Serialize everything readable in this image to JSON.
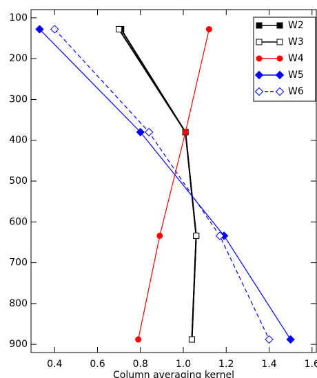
{
  "chart_data": {
    "type": "line",
    "xlabel": "Column averaging kernel",
    "y": [
      128,
      380,
      634,
      888
    ],
    "xlim": [
      0.29,
      1.62
    ],
    "ylim": [
      920,
      80
    ],
    "xticks": [
      0.4,
      0.6,
      0.8,
      {
        "value": 1.0,
        "label": "1.0"
      },
      1.2,
      1.4,
      1.6
    ],
    "yticks": [
      100,
      200,
      300,
      400,
      500,
      600,
      700,
      800,
      900
    ],
    "legend": "upper right",
    "series": [
      {
        "name": "W2",
        "color": "#000000",
        "marker": "square",
        "filled": true,
        "dashed": false,
        "values": [
          0.71,
          1.01,
          1.06,
          1.04
        ]
      },
      {
        "name": "W3",
        "color": "#000000",
        "marker": "square",
        "filled": false,
        "dashed": false,
        "values": [
          0.7,
          1.01,
          1.06,
          1.04
        ]
      },
      {
        "name": "W4",
        "color": "#ff0000",
        "marker": "circle",
        "filled": true,
        "dashed": false,
        "values": [
          1.12,
          1.01,
          0.89,
          0.79
        ]
      },
      {
        "name": "W5",
        "color": "#0000ff",
        "marker": "diamond",
        "filled": true,
        "dashed": false,
        "values": [
          0.33,
          0.8,
          1.19,
          1.5
        ]
      },
      {
        "name": "W6",
        "color": "#0000ff",
        "marker": "diamond",
        "filled": false,
        "dashed": true,
        "values": [
          0.4,
          0.84,
          1.17,
          1.4
        ]
      }
    ]
  }
}
